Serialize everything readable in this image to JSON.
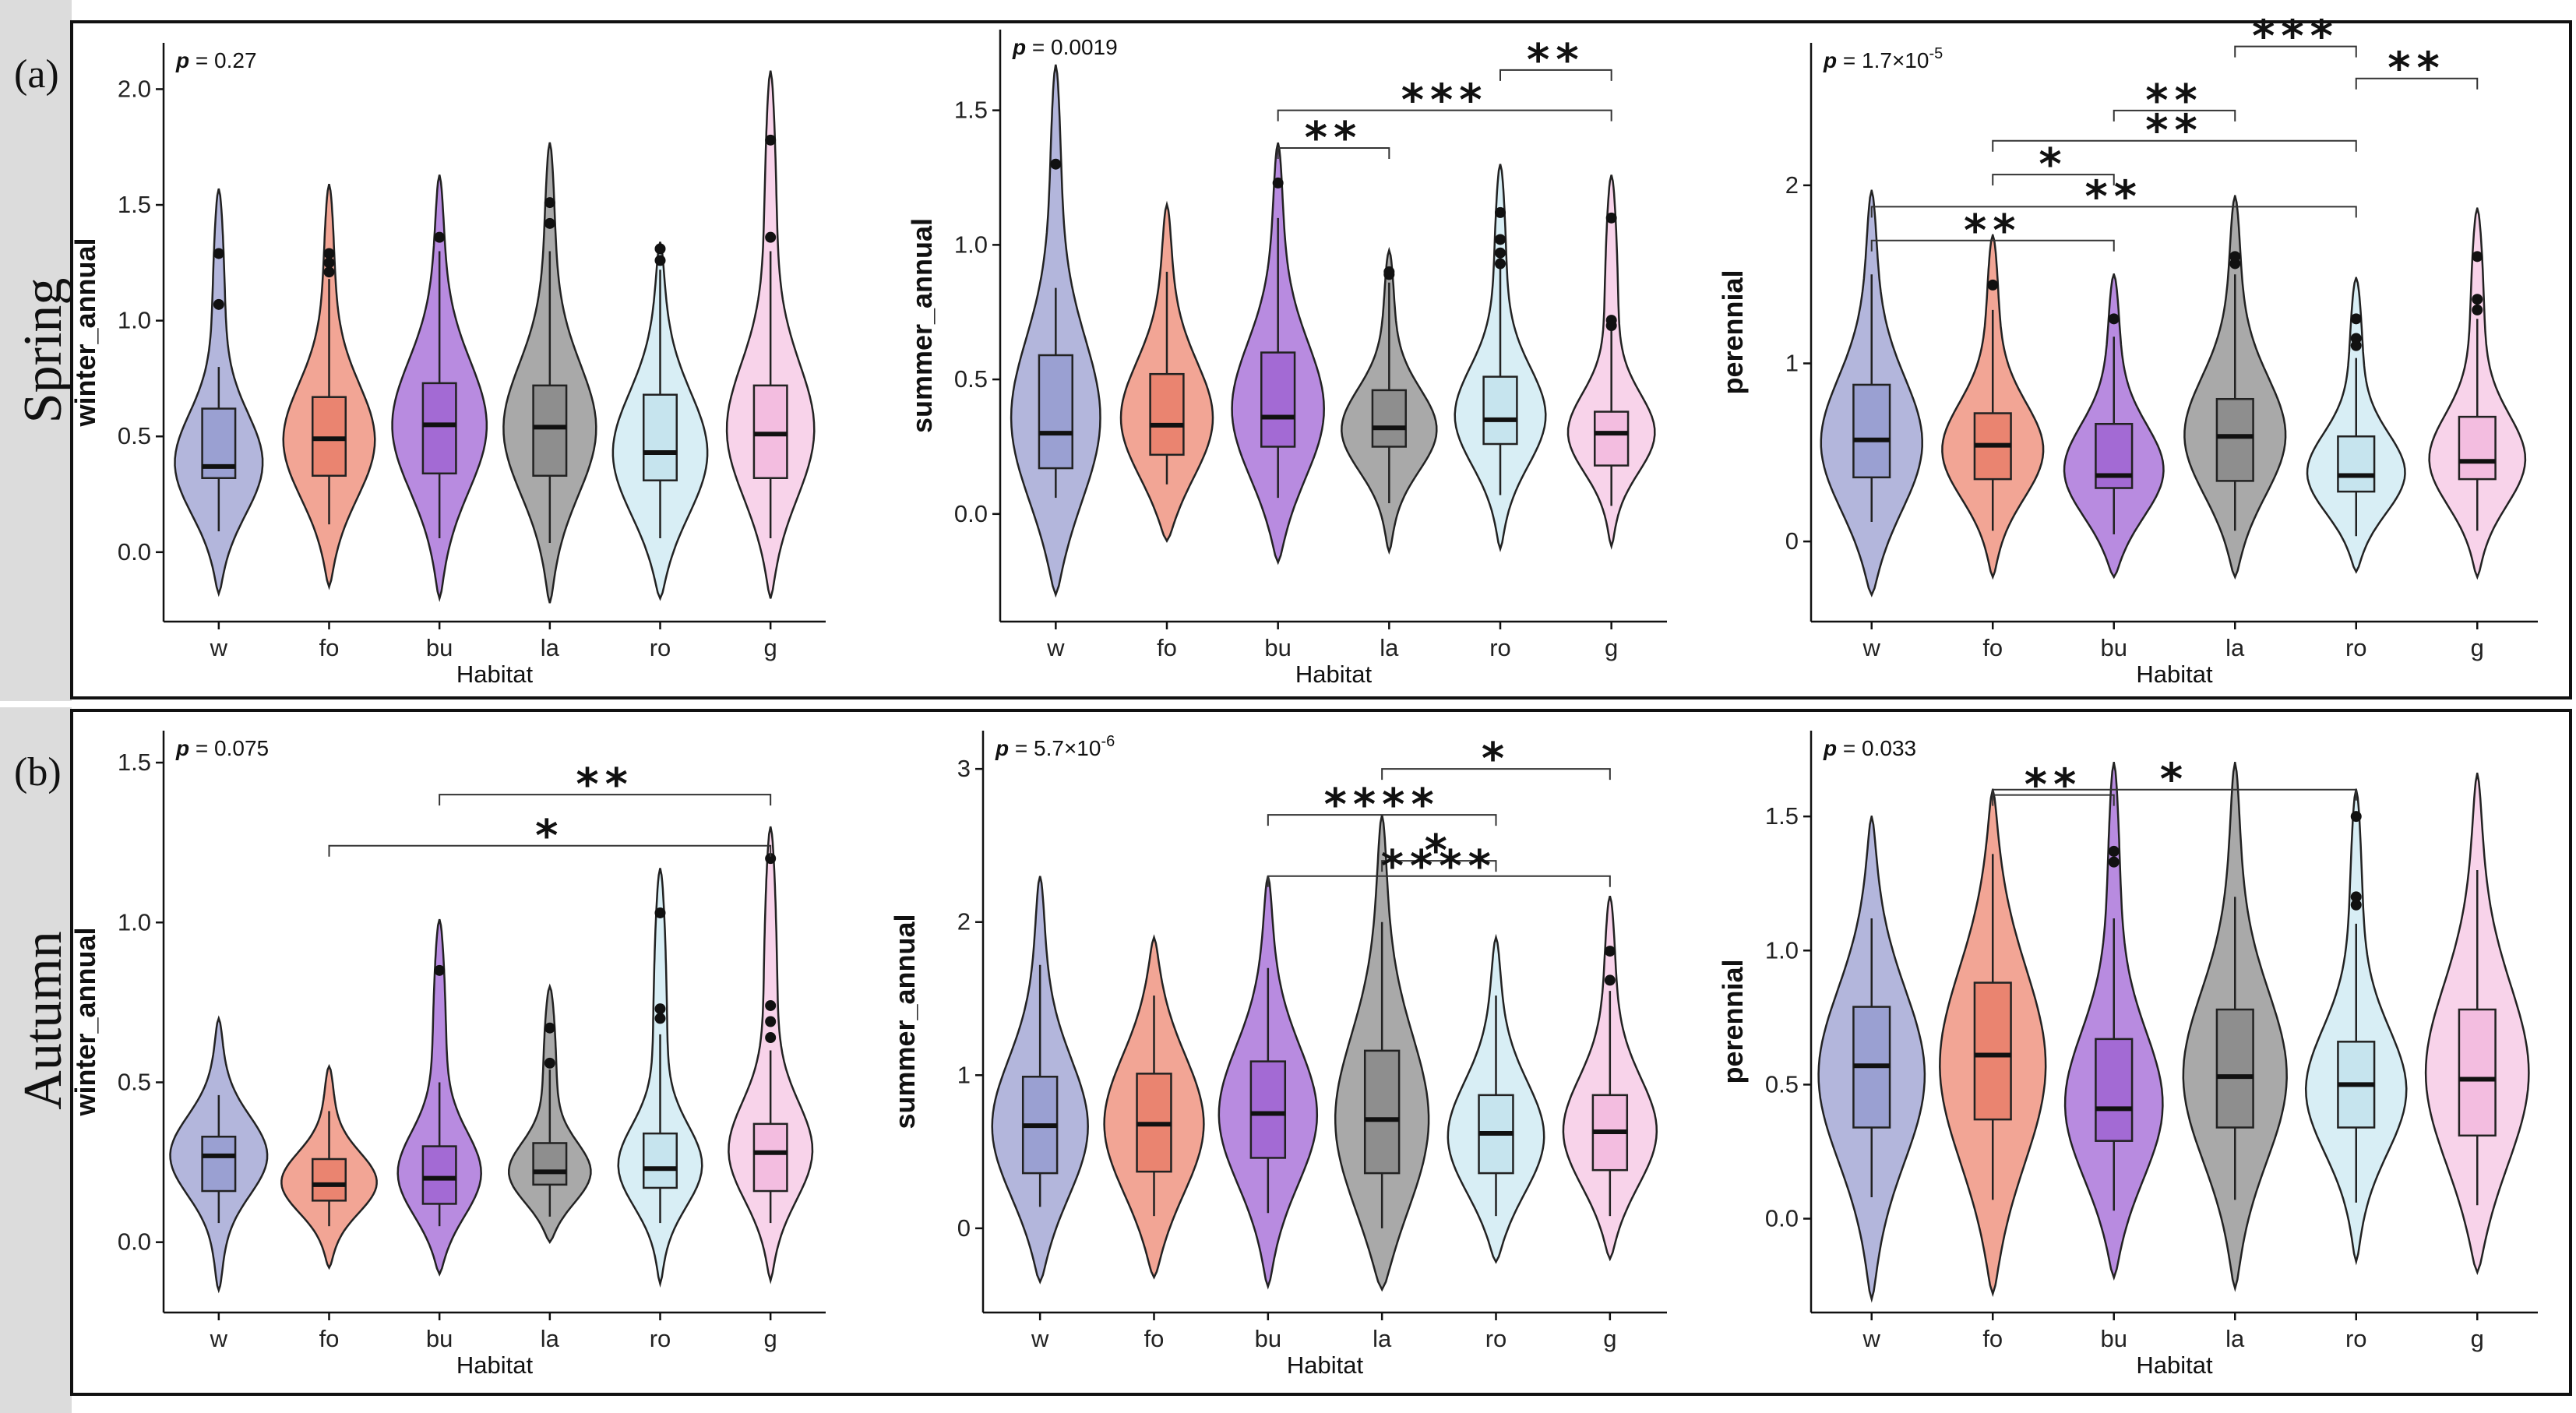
{
  "figure": {
    "rows": [
      {
        "tag": "(a)",
        "season": "Spring"
      },
      {
        "tag": "(b)",
        "season": "Autumn"
      }
    ],
    "xlabel": "Habitat",
    "colors": {
      "w": "#b3b6dc",
      "fo": "#f2a595",
      "bu": "#b88be0",
      "la": "#a9a9a9",
      "ro": "#d8eef5",
      "g": "#f8d3ea",
      "box_w": "#9aa0d2",
      "box_fo": "#ea8470",
      "box_bu": "#a36ad4",
      "box_la": "#8e8e8e",
      "box_ro": "#c6e4ee",
      "box_g": "#f3bde0",
      "row_band": "#dcdcdc"
    }
  },
  "chart_data": [
    {
      "type": "violin",
      "row": 0,
      "col": 0,
      "ylabel": "winter_annual",
      "p": {
        "prefix": "p",
        "text": " = 0.27"
      },
      "ylim": [
        -0.3,
        2.2
      ],
      "yticks": [
        0.0,
        0.5,
        1.0,
        1.5,
        2.0
      ],
      "ytick_labels": [
        "0.0",
        "0.5",
        "1.0",
        "1.5",
        "2.0"
      ],
      "categories": [
        "w",
        "fo",
        "bu",
        "la",
        "ro",
        "g"
      ],
      "groups": [
        {
          "min": -0.18,
          "max": 1.57,
          "q1": 0.32,
          "median": 0.37,
          "q3": 0.62,
          "wlo": 0.09,
          "whi": 0.8,
          "peak": 0.35,
          "outliers": [
            1.07,
            1.29
          ]
        },
        {
          "min": -0.15,
          "max": 1.59,
          "q1": 0.33,
          "median": 0.49,
          "q3": 0.67,
          "wlo": 0.12,
          "whi": 1.18,
          "peak": 0.45,
          "outliers": [
            1.21,
            1.25,
            1.29
          ]
        },
        {
          "min": -0.2,
          "max": 1.63,
          "q1": 0.34,
          "median": 0.55,
          "q3": 0.73,
          "wlo": 0.06,
          "whi": 1.3,
          "peak": 0.52,
          "outliers": [
            1.36
          ]
        },
        {
          "min": -0.22,
          "max": 1.77,
          "q1": 0.33,
          "median": 0.54,
          "q3": 0.72,
          "wlo": 0.04,
          "whi": 1.3,
          "peak": 0.5,
          "outliers": [
            1.42,
            1.51
          ]
        },
        {
          "min": -0.2,
          "max": 1.34,
          "q1": 0.31,
          "median": 0.43,
          "q3": 0.68,
          "wlo": 0.06,
          "whi": 1.22,
          "peak": 0.4,
          "outliers": [
            1.26,
            1.31
          ]
        },
        {
          "min": -0.2,
          "max": 2.08,
          "q1": 0.32,
          "median": 0.51,
          "q3": 0.72,
          "wlo": 0.06,
          "whi": 1.3,
          "peak": 0.48,
          "outliers": [
            1.36,
            1.78
          ]
        }
      ],
      "comparisons": []
    },
    {
      "type": "violin",
      "row": 0,
      "col": 1,
      "ylabel": "summer_annual",
      "p": {
        "prefix": "p",
        "text": " = 0.0019"
      },
      "ylim": [
        -0.4,
        1.8
      ],
      "yticks": [
        0.0,
        0.5,
        1.0,
        1.5
      ],
      "ytick_labels": [
        "0.0",
        "0.5",
        "1.0",
        "1.5"
      ],
      "categories": [
        "w",
        "fo",
        "bu",
        "la",
        "ro",
        "g"
      ],
      "groups": [
        {
          "min": -0.3,
          "max": 1.67,
          "q1": 0.17,
          "median": 0.3,
          "q3": 0.59,
          "wlo": 0.06,
          "whi": 0.84,
          "peak": 0.3,
          "outliers": [
            1.3
          ]
        },
        {
          "min": -0.1,
          "max": 1.15,
          "q1": 0.22,
          "median": 0.33,
          "q3": 0.52,
          "wlo": 0.11,
          "whi": 0.9,
          "peak": 0.32,
          "outliers": []
        },
        {
          "min": -0.18,
          "max": 1.38,
          "q1": 0.25,
          "median": 0.36,
          "q3": 0.6,
          "wlo": 0.06,
          "whi": 1.1,
          "peak": 0.35,
          "outliers": [
            1.23
          ]
        },
        {
          "min": -0.14,
          "max": 0.98,
          "q1": 0.25,
          "median": 0.32,
          "q3": 0.46,
          "wlo": 0.04,
          "whi": 0.86,
          "peak": 0.3,
          "outliers": [
            0.89,
            0.9
          ]
        },
        {
          "min": -0.13,
          "max": 1.3,
          "q1": 0.26,
          "median": 0.35,
          "q3": 0.51,
          "wlo": 0.07,
          "whi": 0.92,
          "peak": 0.34,
          "outliers": [
            0.93,
            0.97,
            1.02,
            1.12
          ]
        },
        {
          "min": -0.12,
          "max": 1.26,
          "q1": 0.18,
          "median": 0.3,
          "q3": 0.38,
          "wlo": 0.03,
          "whi": 0.68,
          "peak": 0.28,
          "outliers": [
            0.7,
            0.72,
            1.1
          ]
        }
      ],
      "comparisons": [
        {
          "from": 2,
          "to": 3,
          "y": 1.36,
          "stars": "**"
        },
        {
          "from": 2,
          "to": 5,
          "y": 1.5,
          "stars": "***"
        },
        {
          "from": 4,
          "to": 5,
          "y": 1.65,
          "stars": "**"
        }
      ]
    },
    {
      "type": "violin",
      "row": 0,
      "col": 2,
      "ylabel": "perennial",
      "p": {
        "prefix": "p",
        "text": " = 1.7×10",
        "sup": "-5"
      },
      "ylim": [
        -0.45,
        2.8
      ],
      "yticks": [
        0,
        1,
        2
      ],
      "ytick_labels": [
        "0",
        "1",
        "2"
      ],
      "categories": [
        "w",
        "fo",
        "bu",
        "la",
        "ro",
        "g"
      ],
      "groups": [
        {
          "min": -0.3,
          "max": 1.97,
          "q1": 0.36,
          "median": 0.57,
          "q3": 0.88,
          "wlo": 0.11,
          "whi": 1.5,
          "peak": 0.5,
          "outliers": []
        },
        {
          "min": -0.2,
          "max": 1.72,
          "q1": 0.35,
          "median": 0.54,
          "q3": 0.72,
          "wlo": 0.06,
          "whi": 1.3,
          "peak": 0.48,
          "outliers": [
            1.44
          ]
        },
        {
          "min": -0.2,
          "max": 1.5,
          "q1": 0.3,
          "median": 0.37,
          "q3": 0.66,
          "wlo": 0.04,
          "whi": 1.15,
          "peak": 0.36,
          "outliers": [
            1.25
          ]
        },
        {
          "min": -0.2,
          "max": 1.94,
          "q1": 0.34,
          "median": 0.59,
          "q3": 0.8,
          "wlo": 0.06,
          "whi": 1.5,
          "peak": 0.55,
          "outliers": [
            1.56,
            1.6
          ]
        },
        {
          "min": -0.17,
          "max": 1.48,
          "q1": 0.28,
          "median": 0.37,
          "q3": 0.59,
          "wlo": 0.03,
          "whi": 1.03,
          "peak": 0.35,
          "outliers": [
            1.1,
            1.14,
            1.25
          ]
        },
        {
          "min": -0.2,
          "max": 1.87,
          "q1": 0.35,
          "median": 0.45,
          "q3": 0.7,
          "wlo": 0.06,
          "whi": 1.25,
          "peak": 0.42,
          "outliers": [
            1.3,
            1.36,
            1.6
          ]
        }
      ],
      "comparisons": [
        {
          "from": 0,
          "to": 2,
          "y": 1.69,
          "stars": "**"
        },
        {
          "from": 0,
          "to": 4,
          "y": 1.88,
          "stars": "**"
        },
        {
          "from": 1,
          "to": 2,
          "y": 2.06,
          "stars": "*"
        },
        {
          "from": 1,
          "to": 4,
          "y": 2.25,
          "stars": "**"
        },
        {
          "from": 2,
          "to": 3,
          "y": 2.42,
          "stars": "**"
        },
        {
          "from": 3,
          "to": 4,
          "y": 2.78,
          "stars": "***"
        },
        {
          "from": 4,
          "to": 5,
          "y": 2.6,
          "stars": "**"
        }
      ]
    },
    {
      "type": "violin",
      "row": 1,
      "col": 0,
      "ylabel": "winter_annual",
      "p": {
        "prefix": "p",
        "text": " = 0.075"
      },
      "ylim": [
        -0.22,
        1.6
      ],
      "yticks": [
        0.0,
        0.5,
        1.0,
        1.5
      ],
      "ytick_labels": [
        "0.0",
        "0.5",
        "1.0",
        "1.5"
      ],
      "categories": [
        "w",
        "fo",
        "bu",
        "la",
        "ro",
        "g"
      ],
      "groups": [
        {
          "min": -0.15,
          "max": 0.7,
          "q1": 0.16,
          "median": 0.27,
          "q3": 0.33,
          "wlo": 0.06,
          "whi": 0.46,
          "peak": 0.27,
          "outliers": []
        },
        {
          "min": -0.08,
          "max": 0.55,
          "q1": 0.13,
          "median": 0.18,
          "q3": 0.26,
          "wlo": 0.05,
          "whi": 0.41,
          "peak": 0.18,
          "outliers": []
        },
        {
          "min": -0.1,
          "max": 1.01,
          "q1": 0.12,
          "median": 0.2,
          "q3": 0.3,
          "wlo": 0.05,
          "whi": 0.5,
          "peak": 0.19,
          "outliers": [
            0.85
          ]
        },
        {
          "min": 0.0,
          "max": 0.8,
          "q1": 0.18,
          "median": 0.22,
          "q3": 0.31,
          "wlo": 0.08,
          "whi": 0.54,
          "peak": 0.2,
          "outliers": [
            0.56,
            0.67
          ]
        },
        {
          "min": -0.13,
          "max": 1.17,
          "q1": 0.17,
          "median": 0.23,
          "q3": 0.34,
          "wlo": 0.06,
          "whi": 0.65,
          "peak": 0.22,
          "outliers": [
            0.7,
            0.73,
            1.03
          ]
        },
        {
          "min": -0.12,
          "max": 1.3,
          "q1": 0.16,
          "median": 0.28,
          "q3": 0.37,
          "wlo": 0.06,
          "whi": 0.6,
          "peak": 0.26,
          "outliers": [
            0.64,
            0.69,
            0.74,
            1.2
          ]
        }
      ],
      "comparisons": [
        {
          "from": 2,
          "to": 5,
          "y": 1.4,
          "stars": "**"
        },
        {
          "from": 1,
          "to": 5,
          "y": 1.24,
          "stars": "*"
        }
      ]
    },
    {
      "type": "violin",
      "row": 1,
      "col": 1,
      "ylabel": "summer_annual",
      "p": {
        "prefix": "p",
        "text": " = 5.7×10",
        "sup": "-6"
      },
      "ylim": [
        -0.55,
        3.25
      ],
      "yticks": [
        0,
        1,
        2,
        3
      ],
      "ytick_labels": [
        "0",
        "1",
        "2",
        "3"
      ],
      "categories": [
        "w",
        "fo",
        "bu",
        "la",
        "ro",
        "g"
      ],
      "groups": [
        {
          "min": -0.35,
          "max": 2.3,
          "q1": 0.36,
          "median": 0.67,
          "q3": 0.99,
          "wlo": 0.14,
          "whi": 1.72,
          "peak": 0.6,
          "outliers": []
        },
        {
          "min": -0.32,
          "max": 1.9,
          "q1": 0.37,
          "median": 0.68,
          "q3": 1.01,
          "wlo": 0.08,
          "whi": 1.52,
          "peak": 0.65,
          "outliers": []
        },
        {
          "min": -0.38,
          "max": 2.3,
          "q1": 0.46,
          "median": 0.75,
          "q3": 1.09,
          "wlo": 0.1,
          "whi": 1.7,
          "peak": 0.7,
          "outliers": []
        },
        {
          "min": -0.4,
          "max": 2.7,
          "q1": 0.36,
          "median": 0.71,
          "q3": 1.16,
          "wlo": 0.0,
          "whi": 2.0,
          "peak": 0.6,
          "outliers": []
        },
        {
          "min": -0.22,
          "max": 1.9,
          "q1": 0.36,
          "median": 0.62,
          "q3": 0.87,
          "wlo": 0.08,
          "whi": 1.52,
          "peak": 0.55,
          "outliers": []
        },
        {
          "min": -0.2,
          "max": 2.17,
          "q1": 0.38,
          "median": 0.63,
          "q3": 0.87,
          "wlo": 0.08,
          "whi": 1.55,
          "peak": 0.58,
          "outliers": [
            1.62,
            1.81
          ]
        }
      ],
      "comparisons": [
        {
          "from": 3,
          "to": 5,
          "y": 3.0,
          "stars": "*"
        },
        {
          "from": 2,
          "to": 4,
          "y": 2.7,
          "stars": "****"
        },
        {
          "from": 3,
          "to": 4,
          "y": 2.4,
          "stars": "*"
        },
        {
          "from": 2,
          "to": 5,
          "y": 2.3,
          "stars": "****"
        }
      ]
    },
    {
      "type": "violin",
      "row": 1,
      "col": 2,
      "ylabel": "perennial",
      "p": {
        "prefix": "p",
        "text": " = 0.033"
      },
      "ylim": [
        -0.35,
        1.82
      ],
      "yticks": [
        0.0,
        0.5,
        1.0,
        1.5
      ],
      "ytick_labels": [
        "0.0",
        "0.5",
        "1.0",
        "1.5"
      ],
      "categories": [
        "w",
        "fo",
        "bu",
        "la",
        "ro",
        "g"
      ],
      "groups": [
        {
          "min": -0.3,
          "max": 1.5,
          "q1": 0.34,
          "median": 0.57,
          "q3": 0.79,
          "wlo": 0.08,
          "whi": 1.12,
          "peak": 0.52,
          "outliers": []
        },
        {
          "min": -0.28,
          "max": 1.6,
          "q1": 0.37,
          "median": 0.61,
          "q3": 0.88,
          "wlo": 0.07,
          "whi": 1.36,
          "peak": 0.55,
          "outliers": []
        },
        {
          "min": -0.22,
          "max": 1.7,
          "q1": 0.29,
          "median": 0.41,
          "q3": 0.67,
          "wlo": 0.03,
          "whi": 1.12,
          "peak": 0.38,
          "outliers": [
            1.33,
            1.37
          ]
        },
        {
          "min": -0.26,
          "max": 1.7,
          "q1": 0.34,
          "median": 0.53,
          "q3": 0.78,
          "wlo": 0.07,
          "whi": 1.2,
          "peak": 0.5,
          "outliers": []
        },
        {
          "min": -0.16,
          "max": 1.6,
          "q1": 0.34,
          "median": 0.5,
          "q3": 0.66,
          "wlo": 0.06,
          "whi": 1.1,
          "peak": 0.45,
          "outliers": [
            1.17,
            1.2,
            1.5
          ]
        },
        {
          "min": -0.2,
          "max": 1.66,
          "q1": 0.31,
          "median": 0.52,
          "q3": 0.78,
          "wlo": 0.05,
          "whi": 1.3,
          "peak": 0.5,
          "outliers": []
        }
      ],
      "comparisons": [
        {
          "from": 1,
          "to": 4,
          "y": 1.6,
          "stars": "*"
        },
        {
          "from": 1,
          "to": 2,
          "y": 1.58,
          "stars": "**"
        }
      ]
    }
  ]
}
